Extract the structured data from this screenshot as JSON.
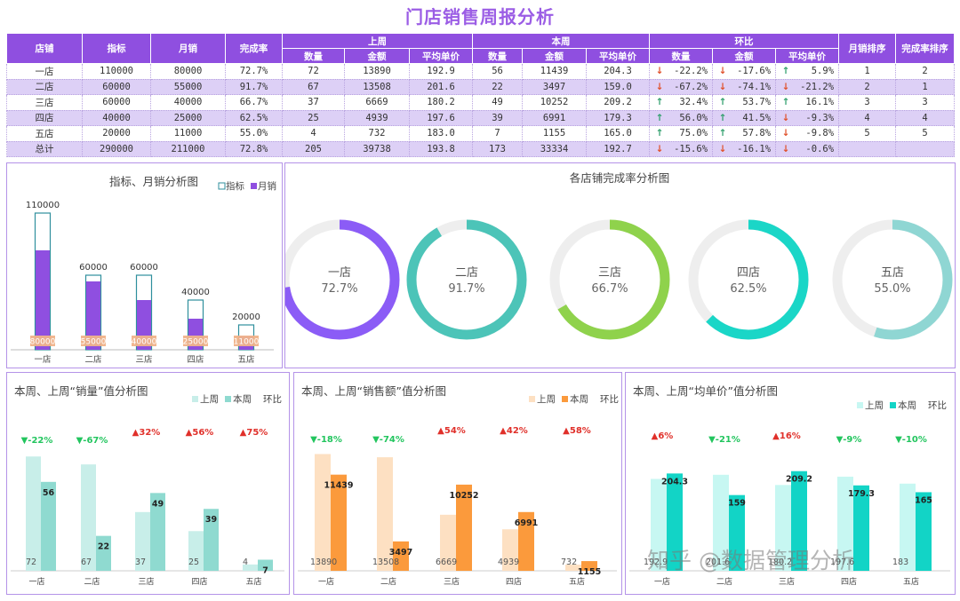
{
  "title": "门店销售周报分析",
  "table": {
    "headers": {
      "store": "店铺",
      "target": "指标",
      "monthly": "月销",
      "rate": "完成率",
      "last_week": "上周",
      "this_week": "本周",
      "mom": "环比",
      "rank_sales": "月销排序",
      "rank_rate": "完成率排序",
      "qty": "数量",
      "amount": "金额",
      "avg_price": "平均单价"
    },
    "rows": [
      {
        "store": "一店",
        "target": "110000",
        "monthly": "80000",
        "rate": "72.7%",
        "lw_qty": "72",
        "lw_amt": "13890",
        "lw_avg": "192.9",
        "tw_qty": "56",
        "tw_amt": "11439",
        "tw_avg": "204.3",
        "c_qty": "-22.2%",
        "c_qty_dir": "down",
        "c_amt": "-17.6%",
        "c_amt_dir": "down",
        "c_avg": "5.9%",
        "c_avg_dir": "up",
        "rank_sales": "1",
        "rank_rate": "2"
      },
      {
        "store": "二店",
        "target": "60000",
        "monthly": "55000",
        "rate": "91.7%",
        "lw_qty": "67",
        "lw_amt": "13508",
        "lw_avg": "201.6",
        "tw_qty": "22",
        "tw_amt": "3497",
        "tw_avg": "159.0",
        "c_qty": "-67.2%",
        "c_qty_dir": "down",
        "c_amt": "-74.1%",
        "c_amt_dir": "down",
        "c_avg": "-21.2%",
        "c_avg_dir": "down",
        "rank_sales": "2",
        "rank_rate": "1"
      },
      {
        "store": "三店",
        "target": "60000",
        "monthly": "40000",
        "rate": "66.7%",
        "lw_qty": "37",
        "lw_amt": "6669",
        "lw_avg": "180.2",
        "tw_qty": "49",
        "tw_amt": "10252",
        "tw_avg": "209.2",
        "c_qty": "32.4%",
        "c_qty_dir": "up",
        "c_amt": "53.7%",
        "c_amt_dir": "up",
        "c_avg": "16.1%",
        "c_avg_dir": "up",
        "rank_sales": "3",
        "rank_rate": "3"
      },
      {
        "store": "四店",
        "target": "40000",
        "monthly": "25000",
        "rate": "62.5%",
        "lw_qty": "25",
        "lw_amt": "4939",
        "lw_avg": "197.6",
        "tw_qty": "39",
        "tw_amt": "6991",
        "tw_avg": "179.3",
        "c_qty": "56.0%",
        "c_qty_dir": "up",
        "c_amt": "41.5%",
        "c_amt_dir": "up",
        "c_avg": "-9.3%",
        "c_avg_dir": "down",
        "rank_sales": "4",
        "rank_rate": "4"
      },
      {
        "store": "五店",
        "target": "20000",
        "monthly": "11000",
        "rate": "55.0%",
        "lw_qty": "4",
        "lw_amt": "732",
        "lw_avg": "183.0",
        "tw_qty": "7",
        "tw_amt": "1155",
        "tw_avg": "165.0",
        "c_qty": "75.0%",
        "c_qty_dir": "up",
        "c_amt": "57.8%",
        "c_amt_dir": "up",
        "c_avg": "-9.8%",
        "c_avg_dir": "down",
        "rank_sales": "5",
        "rank_rate": "5"
      },
      {
        "store": "总计",
        "target": "290000",
        "monthly": "211000",
        "rate": "72.8%",
        "lw_qty": "205",
        "lw_amt": "39738",
        "lw_avg": "193.8",
        "tw_qty": "173",
        "tw_amt": "33334",
        "tw_avg": "192.7",
        "c_qty": "-15.6%",
        "c_qty_dir": "down",
        "c_amt": "-16.1%",
        "c_amt_dir": "down",
        "c_avg": "-0.6%",
        "c_avg_dir": "down",
        "rank_sales": "",
        "rank_rate": ""
      }
    ]
  },
  "watermark": "知乎 @数据管理分析",
  "colors": {
    "purple": "#8f4fe0",
    "donuts": [
      "#8b5cf6",
      "#4cc4b8",
      "#8fd24c",
      "#1ad6c7",
      "#8fd6d3"
    ],
    "qty_last": "#c8eee9",
    "qty_this": "#8fdad0",
    "amt_last": "#fde0c2",
    "amt_this": "#fb9a3c",
    "avg_last": "#c7f7f2",
    "avg_this": "#12d4c6",
    "up_label": "#e0302a",
    "down_label": "#22c55e"
  },
  "chart_data": [
    {
      "type": "bar",
      "title": "指标、月销分析图",
      "categories": [
        "一店",
        "二店",
        "三店",
        "四店",
        "五店"
      ],
      "series": [
        {
          "name": "指标",
          "values": [
            110000,
            60000,
            60000,
            40000,
            20000
          ]
        },
        {
          "name": "月销",
          "values": [
            80000,
            55000,
            40000,
            25000,
            11000
          ]
        }
      ],
      "ylim": [
        0,
        120000
      ],
      "legend": "top-right"
    },
    {
      "type": "pie",
      "title": "各店铺完成率分析图",
      "categories": [
        "一店",
        "二店",
        "三店",
        "四店",
        "五店"
      ],
      "values": [
        72.7,
        91.7,
        66.7,
        62.5,
        55.0
      ],
      "labels": [
        "72.7%",
        "91.7%",
        "66.7%",
        "62.5%",
        "55.0%"
      ]
    },
    {
      "type": "bar",
      "title": "本周、上周“销量”值分析图",
      "legend_extra": "环比",
      "categories": [
        "一店",
        "二店",
        "三店",
        "四店",
        "五店"
      ],
      "series": [
        {
          "name": "上周",
          "values": [
            72,
            67,
            37,
            25,
            4
          ]
        },
        {
          "name": "本周",
          "values": [
            56,
            22,
            49,
            39,
            7
          ]
        }
      ],
      "change": [
        {
          "label": "-22%",
          "dir": "down"
        },
        {
          "label": "-67%",
          "dir": "down"
        },
        {
          "label": "32%",
          "dir": "up"
        },
        {
          "label": "56%",
          "dir": "up"
        },
        {
          "label": "75%",
          "dir": "up"
        }
      ],
      "ylim": [
        0,
        90
      ]
    },
    {
      "type": "bar",
      "title": "本周、上周“销售额”值分析图",
      "legend_extra": "环比",
      "categories": [
        "一店",
        "二店",
        "三店",
        "四店",
        "五店"
      ],
      "series": [
        {
          "name": "上周",
          "values": [
            13890,
            13508,
            6669,
            4939,
            732
          ]
        },
        {
          "name": "本周",
          "values": [
            11439,
            3497,
            10252,
            6991,
            1155
          ]
        }
      ],
      "change": [
        {
          "label": "-18%",
          "dir": "down"
        },
        {
          "label": "-74%",
          "dir": "down"
        },
        {
          "label": "54%",
          "dir": "up"
        },
        {
          "label": "42%",
          "dir": "up"
        },
        {
          "label": "58%",
          "dir": "up"
        }
      ],
      "ylim": [
        0,
        17000
      ]
    },
    {
      "type": "bar",
      "title": "本周、上周“均单价”值分析图",
      "legend_extra": "环比",
      "categories": [
        "一店",
        "二店",
        "三店",
        "四店",
        "五店"
      ],
      "series": [
        {
          "name": "上周",
          "values": [
            192.9,
            201.6,
            180.2,
            197.6,
            183.0
          ]
        },
        {
          "name": "本周",
          "values": [
            204.3,
            159.0,
            209.2,
            179.3,
            165.0
          ]
        }
      ],
      "change": [
        {
          "label": "6%",
          "dir": "up"
        },
        {
          "label": "-21%",
          "dir": "down"
        },
        {
          "label": "16%",
          "dir": "up"
        },
        {
          "label": "-9%",
          "dir": "down"
        },
        {
          "label": "-10%",
          "dir": "down"
        }
      ],
      "ylim": [
        0,
        300
      ]
    }
  ]
}
